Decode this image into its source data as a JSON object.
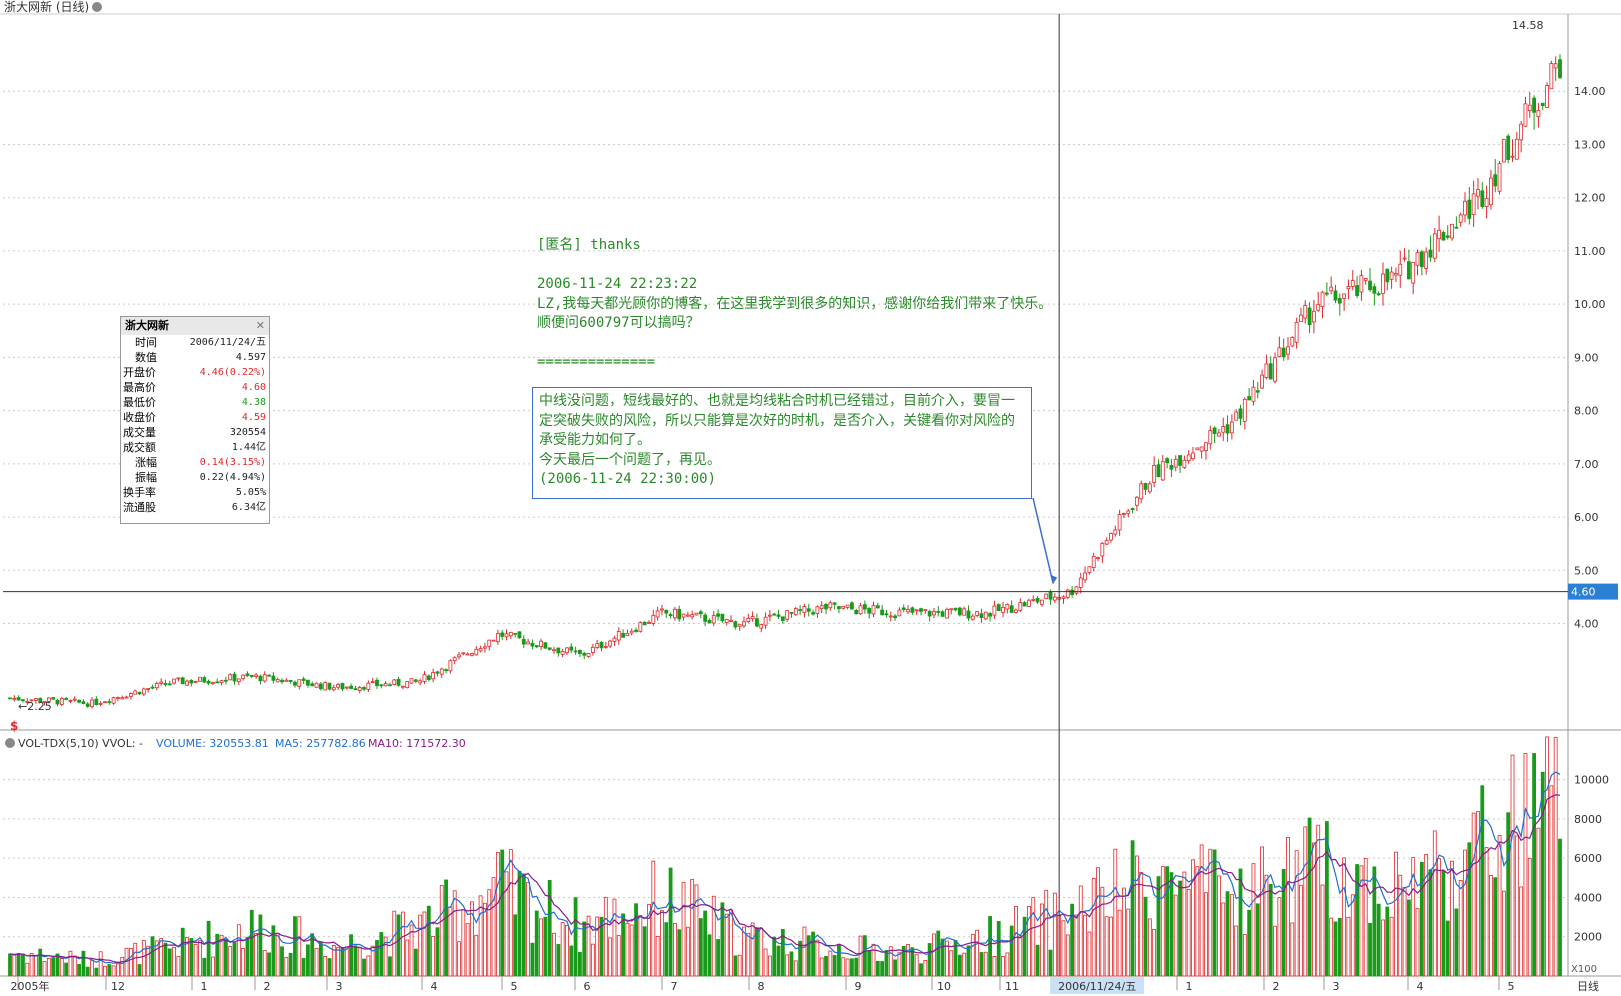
{
  "header": {
    "title": "浙大网新 (日线)"
  },
  "price_panel": {
    "high_marker": "14.58",
    "low_marker": "2.25",
    "current_price_tag": "4.60",
    "y_ticks": [
      "14.00",
      "13.00",
      "12.00",
      "11.00",
      "10.00",
      "9.00",
      "8.00",
      "7.00",
      "6.00",
      "5.00",
      "4.00"
    ]
  },
  "info_panel": {
    "title": "浙大网新",
    "rows": [
      {
        "k": "时间",
        "v": "2006/11/24/五",
        "c": "blk",
        "indent": true
      },
      {
        "k": "数值",
        "v": "4.597",
        "c": "blk",
        "indent": true
      },
      {
        "k": "开盘价",
        "v": "4.46(0.22%)",
        "c": "red",
        "indent": false
      },
      {
        "k": "最高价",
        "v": "4.60",
        "c": "red",
        "indent": false
      },
      {
        "k": "最低价",
        "v": "4.38",
        "c": "green",
        "indent": false
      },
      {
        "k": "收盘价",
        "v": "4.59",
        "c": "red",
        "indent": false
      },
      {
        "k": "成交量",
        "v": "320554",
        "c": "blk",
        "indent": false
      },
      {
        "k": "成交额",
        "v": "1.44亿",
        "c": "blk",
        "indent": false
      },
      {
        "k": "涨幅",
        "v": "0.14(3.15%)",
        "c": "red",
        "indent": true
      },
      {
        "k": "振幅",
        "v": "0.22(4.94%)",
        "c": "blk",
        "indent": true
      },
      {
        "k": "换手率",
        "v": "5.05%",
        "c": "blk",
        "indent": false
      },
      {
        "k": "流通股",
        "v": "6.34亿",
        "c": "blk",
        "indent": false
      }
    ]
  },
  "comment": {
    "author": "[匿名] thanks",
    "time": "2006-11-24 22:23:22",
    "line1": "LZ,我每天都光顾你的博客，在这里我学到很多的知识，感谢你给我们带来了快乐。",
    "line2": "顺便问600797可以搞吗？",
    "divider": "=============="
  },
  "reply": {
    "text": "中线没问题，短线最好的、也就是均线粘合时机已经错过，目前介入，要冒一定突破失败的风险，所以只能算是次好的时机，是否介入，关键看你对风险的承受能力如何了。",
    "line2": "今天最后一个问题了，再见。",
    "time": "(2006-11-24 22:30:00)"
  },
  "volume_panel": {
    "indicator": "VOL-TDX(5,10) VVOL: -",
    "volume_label": "VOLUME: 320553.81",
    "ma5_label": "MA5: 257782.86",
    "ma10_label": "MA10: 171572.30",
    "y_ticks": [
      "10000",
      "8000",
      "6000",
      "4000",
      "2000"
    ],
    "unit": "X100"
  },
  "x_axis": {
    "labels": [
      "2005年",
      "12",
      "1",
      "2",
      "3",
      "4",
      "5",
      "6",
      "7",
      "8",
      "9",
      "10",
      "11",
      "2006/11/24/五",
      "1",
      "2",
      "3",
      "4",
      "5"
    ],
    "period": "日线"
  },
  "colors": {
    "up": "#e0282a",
    "down": "#1a9a1a",
    "ma5": "#1f6fd1",
    "ma10": "#8a1a8a",
    "text_green": "#2a8a2a"
  },
  "chart_data": {
    "type": "candlestick+bar",
    "price_ylim": [
      2.0,
      15.0
    ],
    "volume_ylim": [
      0,
      11000
    ],
    "price_key_points": [
      {
        "x": "2005年",
        "close": 2.6
      },
      {
        "x": "12",
        "close": 2.5
      },
      {
        "x": "1",
        "close": 2.9
      },
      {
        "x": "2",
        "close": 3.0
      },
      {
        "x": "3",
        "close": 2.8
      },
      {
        "x": "4",
        "close": 2.9
      },
      {
        "x": "5",
        "close": 3.8
      },
      {
        "x": "6",
        "close": 3.4
      },
      {
        "x": "7",
        "close": 4.2
      },
      {
        "x": "8",
        "close": 4.0
      },
      {
        "x": "9",
        "close": 4.3
      },
      {
        "x": "10",
        "close": 4.2
      },
      {
        "x": "11",
        "close": 4.2
      },
      {
        "x": "2006/11/24/五",
        "close": 4.59
      },
      {
        "x": "1",
        "close": 6.8
      },
      {
        "x": "2",
        "close": 7.8
      },
      {
        "x": "3",
        "close": 10.0
      },
      {
        "x": "4",
        "close": 10.5
      },
      {
        "x": "5",
        "close": 12.0
      },
      {
        "x": "end",
        "close": 14.58
      }
    ],
    "volume_key_points": [
      {
        "x": "2005年",
        "v": 1200
      },
      {
        "x": "12",
        "v": 800
      },
      {
        "x": "1",
        "v": 1500
      },
      {
        "x": "2",
        "v": 2500
      },
      {
        "x": "3",
        "v": 1500
      },
      {
        "x": "4",
        "v": 2500
      },
      {
        "x": "5",
        "v": 4500
      },
      {
        "x": "6",
        "v": 2500
      },
      {
        "x": "7",
        "v": 4000
      },
      {
        "x": "8",
        "v": 2000
      },
      {
        "x": "9",
        "v": 1500
      },
      {
        "x": "10",
        "v": 1200
      },
      {
        "x": "11",
        "v": 2000
      },
      {
        "x": "2006/11/24/五",
        "v": 3205
      },
      {
        "x": "1",
        "v": 5000
      },
      {
        "x": "2",
        "v": 4000
      },
      {
        "x": "3",
        "v": 5500
      },
      {
        "x": "4",
        "v": 4500
      },
      {
        "x": "5",
        "v": 6500
      },
      {
        "x": "end",
        "v": 9000
      }
    ]
  }
}
